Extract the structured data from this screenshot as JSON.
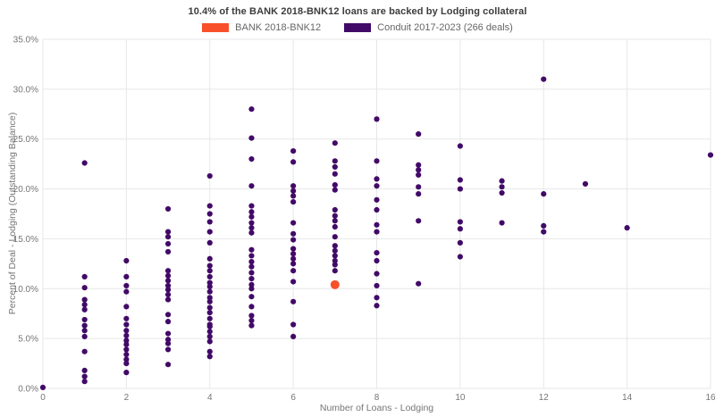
{
  "header": {
    "title": "10.4% of the BANK 2018-BNK12 loans are backed by Lodging collateral"
  },
  "legend": {
    "items": [
      {
        "label": "BANK 2018-BNK12",
        "color": "#F8502A"
      },
      {
        "label": "Conduit 2017-2023 (266 deals)",
        "color": "#420A68"
      }
    ]
  },
  "chart_data": {
    "type": "scatter",
    "title": "10.4% of the BANK 2018-BNK12 loans are backed by Lodging collateral",
    "xlabel": "Number of Loans - Lodging",
    "ylabel": "Percent of Deal - Lodging (Outstanding Balance)",
    "xlim": [
      0,
      16
    ],
    "ylim": [
      0,
      35
    ],
    "grid": true,
    "legend_position": "top-center",
    "x_ticks": [
      {
        "value": 0,
        "label": "0"
      },
      {
        "value": 2,
        "label": "2"
      },
      {
        "value": 4,
        "label": "4"
      },
      {
        "value": 6,
        "label": "6"
      },
      {
        "value": 8,
        "label": "8"
      },
      {
        "value": 10,
        "label": "10"
      },
      {
        "value": 12,
        "label": "12"
      },
      {
        "value": 14,
        "label": "14"
      },
      {
        "value": 16,
        "label": "16"
      }
    ],
    "y_ticks": [
      {
        "value": 0,
        "label": "0.0%"
      },
      {
        "value": 5,
        "label": "5.0%"
      },
      {
        "value": 10,
        "label": "10.0%"
      },
      {
        "value": 15,
        "label": "15.0%"
      },
      {
        "value": 20,
        "label": "20.0%"
      },
      {
        "value": 25,
        "label": "25.0%"
      },
      {
        "value": 30,
        "label": "30.0%"
      },
      {
        "value": 35,
        "label": "35.0%"
      }
    ],
    "series": [
      {
        "name": "Conduit 2017-2023 (266 deals)",
        "color": "#420A68",
        "radius": 3.1,
        "points": [
          [
            0,
            0.1
          ],
          [
            1,
            22.6
          ],
          [
            1,
            11.2
          ],
          [
            1,
            10.1
          ],
          [
            1,
            8.9
          ],
          [
            1,
            8.4
          ],
          [
            1,
            7.9
          ],
          [
            1,
            6.9
          ],
          [
            1,
            6.3
          ],
          [
            1,
            5.8
          ],
          [
            1,
            5.2
          ],
          [
            1,
            3.7
          ],
          [
            1,
            1.8
          ],
          [
            1,
            1.2
          ],
          [
            1,
            0.7
          ],
          [
            2,
            12.8
          ],
          [
            2,
            11.2
          ],
          [
            2,
            10.3
          ],
          [
            2,
            9.7
          ],
          [
            2,
            8.2
          ],
          [
            2,
            7.0
          ],
          [
            2,
            6.4
          ],
          [
            2,
            5.8
          ],
          [
            2,
            5.3
          ],
          [
            2,
            4.8
          ],
          [
            2,
            4.4
          ],
          [
            2,
            3.9
          ],
          [
            2,
            3.4
          ],
          [
            2,
            2.9
          ],
          [
            2,
            2.5
          ],
          [
            2,
            1.6
          ],
          [
            3,
            18.0
          ],
          [
            3,
            15.7
          ],
          [
            3,
            15.2
          ],
          [
            3,
            14.5
          ],
          [
            3,
            13.7
          ],
          [
            3,
            11.8
          ],
          [
            3,
            11.3
          ],
          [
            3,
            10.8
          ],
          [
            3,
            10.3
          ],
          [
            3,
            9.9
          ],
          [
            3,
            9.4
          ],
          [
            3,
            8.9
          ],
          [
            3,
            7.4
          ],
          [
            3,
            6.7
          ],
          [
            3,
            5.5
          ],
          [
            3,
            4.9
          ],
          [
            3,
            4.5
          ],
          [
            3,
            3.9
          ],
          [
            3,
            2.4
          ],
          [
            4,
            21.3
          ],
          [
            4,
            18.3
          ],
          [
            4,
            17.5
          ],
          [
            4,
            16.7
          ],
          [
            4,
            15.7
          ],
          [
            4,
            14.6
          ],
          [
            4,
            13.0
          ],
          [
            4,
            12.3
          ],
          [
            4,
            11.8
          ],
          [
            4,
            11.2
          ],
          [
            4,
            10.6
          ],
          [
            4,
            10.2
          ],
          [
            4,
            9.7
          ],
          [
            4,
            9.1
          ],
          [
            4,
            8.7
          ],
          [
            4,
            8.1
          ],
          [
            4,
            7.6
          ],
          [
            4,
            7.0
          ],
          [
            4,
            6.4
          ],
          [
            4,
            6.2
          ],
          [
            4,
            5.7
          ],
          [
            4,
            5.2
          ],
          [
            4,
            4.7
          ],
          [
            4,
            3.7
          ],
          [
            4,
            3.2
          ],
          [
            5,
            28.0
          ],
          [
            5,
            25.1
          ],
          [
            5,
            23.0
          ],
          [
            5,
            20.3
          ],
          [
            5,
            18.3
          ],
          [
            5,
            17.7
          ],
          [
            5,
            17.2
          ],
          [
            5,
            16.6
          ],
          [
            5,
            16.1
          ],
          [
            5,
            15.6
          ],
          [
            5,
            13.9
          ],
          [
            5,
            13.3
          ],
          [
            5,
            12.7
          ],
          [
            5,
            12.2
          ],
          [
            5,
            11.6
          ],
          [
            5,
            11.0
          ],
          [
            5,
            10.4
          ],
          [
            5,
            10.0
          ],
          [
            5,
            9.2
          ],
          [
            5,
            8.2
          ],
          [
            5,
            7.3
          ],
          [
            5,
            6.8
          ],
          [
            5,
            6.3
          ],
          [
            6,
            23.8
          ],
          [
            6,
            22.7
          ],
          [
            6,
            20.3
          ],
          [
            6,
            19.8
          ],
          [
            6,
            19.3
          ],
          [
            6,
            18.7
          ],
          [
            6,
            16.6
          ],
          [
            6,
            15.5
          ],
          [
            6,
            14.9
          ],
          [
            6,
            14.0
          ],
          [
            6,
            13.5
          ],
          [
            6,
            13.0
          ],
          [
            6,
            12.5
          ],
          [
            6,
            11.8
          ],
          [
            6,
            10.7
          ],
          [
            6,
            8.7
          ],
          [
            6,
            6.4
          ],
          [
            6,
            5.2
          ],
          [
            7,
            24.6
          ],
          [
            7,
            22.8
          ],
          [
            7,
            22.2
          ],
          [
            7,
            21.5
          ],
          [
            7,
            20.4
          ],
          [
            7,
            19.9
          ],
          [
            7,
            17.9
          ],
          [
            7,
            17.3
          ],
          [
            7,
            16.8
          ],
          [
            7,
            16.2
          ],
          [
            7,
            15.2
          ],
          [
            7,
            14.3
          ],
          [
            7,
            13.8
          ],
          [
            7,
            13.3
          ],
          [
            7,
            12.8
          ],
          [
            7,
            12.4
          ],
          [
            7,
            11.8
          ],
          [
            8,
            27.0
          ],
          [
            8,
            22.8
          ],
          [
            8,
            21.0
          ],
          [
            8,
            20.3
          ],
          [
            8,
            18.9
          ],
          [
            8,
            17.9
          ],
          [
            8,
            16.4
          ],
          [
            8,
            15.7
          ],
          [
            8,
            13.6
          ],
          [
            8,
            12.8
          ],
          [
            8,
            11.5
          ],
          [
            8,
            10.3
          ],
          [
            8,
            9.1
          ],
          [
            8,
            8.3
          ],
          [
            9,
            25.5
          ],
          [
            9,
            22.4
          ],
          [
            9,
            21.9
          ],
          [
            9,
            21.4
          ],
          [
            9,
            20.2
          ],
          [
            9,
            19.5
          ],
          [
            9,
            16.8
          ],
          [
            9,
            10.5
          ],
          [
            10,
            24.3
          ],
          [
            10,
            20.9
          ],
          [
            10,
            20.0
          ],
          [
            10,
            16.7
          ],
          [
            10,
            16.0
          ],
          [
            10,
            14.6
          ],
          [
            10,
            13.2
          ],
          [
            11,
            20.8
          ],
          [
            11,
            20.2
          ],
          [
            11,
            19.6
          ],
          [
            11,
            16.6
          ],
          [
            12,
            31.0
          ],
          [
            12,
            19.5
          ],
          [
            12,
            16.3
          ],
          [
            12,
            15.7
          ],
          [
            13,
            20.5
          ],
          [
            14,
            16.1
          ],
          [
            16,
            23.4
          ]
        ]
      },
      {
        "name": "BANK 2018-BNK12",
        "color": "#F8502A",
        "radius": 5,
        "points": [
          [
            7,
            10.4
          ]
        ]
      }
    ]
  }
}
